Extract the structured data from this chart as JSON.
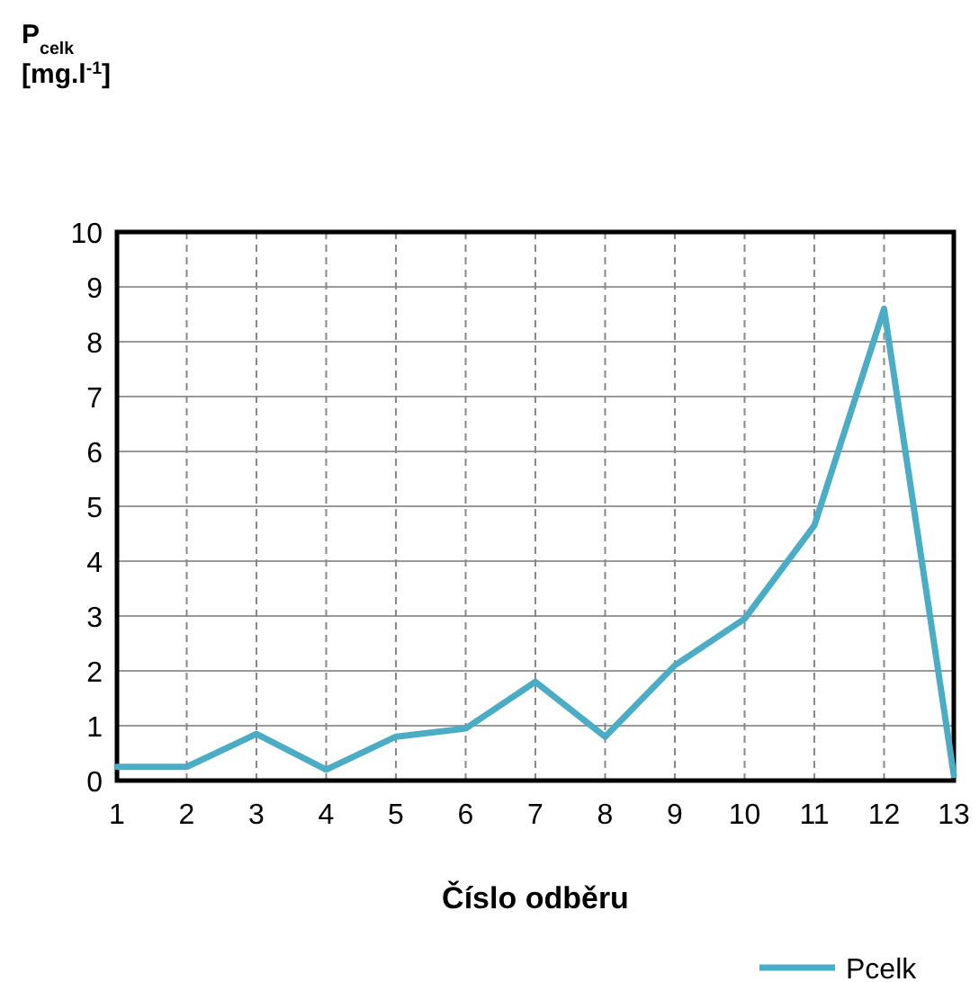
{
  "chart_data": {
    "type": "line",
    "ylabel": "P$_{celk}$ [mg.l$^{-1}$]",
    "xlabel": "Číslo odběru",
    "x": [
      1,
      2,
      3,
      4,
      5,
      6,
      7,
      8,
      9,
      10,
      11,
      12,
      13
    ],
    "series": [
      {
        "name": "Pcelk",
        "color": "#4bacc6",
        "values": [
          0.25,
          0.25,
          0.85,
          0.2,
          0.8,
          0.95,
          1.8,
          0.8,
          2.1,
          2.95,
          4.65,
          8.6,
          0.1
        ]
      }
    ],
    "xlim": [
      1,
      13
    ],
    "xticks": [
      1,
      2,
      3,
      4,
      5,
      6,
      7,
      8,
      9,
      10,
      11,
      12,
      13
    ],
    "ylim": [
      0,
      10
    ],
    "yticks": [
      0,
      1,
      2,
      3,
      4,
      5,
      6,
      7,
      8,
      9,
      10
    ],
    "grid": true,
    "legend": "bottom",
    "marker": "none",
    "line_style": "solid"
  }
}
